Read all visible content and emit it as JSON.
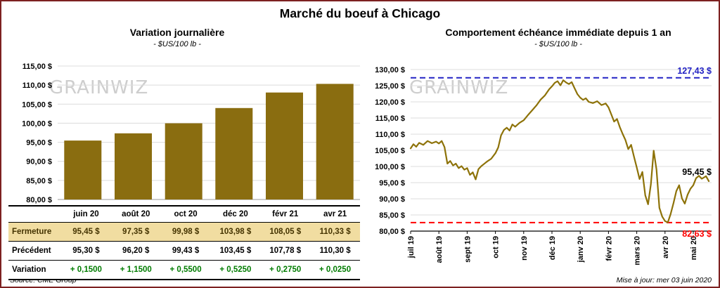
{
  "page": {
    "title": "Marché du boeuf à Chicago",
    "watermark": "GRAINWIZ",
    "source": "Source: CME Group",
    "updated": "Mise à jour: mer 03 juin 2020"
  },
  "table": {
    "columns": [
      "juin 20",
      "août 20",
      "oct 20",
      "déc 20",
      "févr 21",
      "avr 21"
    ],
    "rows": [
      {
        "label": "Fermeture",
        "style": "fermeture",
        "values": [
          "95,45 $",
          "97,35 $",
          "99,98 $",
          "103,98 $",
          "108,05 $",
          "110,33 $"
        ]
      },
      {
        "label": "Précédent",
        "style": "precedent",
        "values": [
          "95,30 $",
          "96,20 $",
          "99,43 $",
          "103,45 $",
          "107,78 $",
          "110,30 $"
        ]
      },
      {
        "label": "Variation",
        "style": "variation",
        "values": [
          "+ 0,1500",
          "+ 1,1500",
          "+ 0,5500",
          "+ 0,5250",
          "+ 0,2750",
          "+ 0,0250"
        ]
      }
    ]
  },
  "chart_data": [
    {
      "type": "bar",
      "title": "Variation journalière",
      "subtitle": "- $US/100 lb -",
      "categories": [
        "juin 20",
        "août 20",
        "oct 20",
        "déc 20",
        "févr 21",
        "avr 21"
      ],
      "values": [
        95.45,
        97.35,
        99.98,
        103.98,
        108.05,
        110.33
      ],
      "ylim": [
        80,
        115
      ],
      "ytick_step": 5,
      "ytick_labels": [
        "80,00 $",
        "85,00 $",
        "90,00 $",
        "95,00 $",
        "100,00 $",
        "105,00 $",
        "110,00 $",
        "115,00 $"
      ],
      "bar_color": "#8a6d10",
      "grid": true,
      "legend": "none"
    },
    {
      "type": "line",
      "title": "Comportement échéance immédiate depuis 1 an",
      "subtitle": "- $US/100 lb -",
      "x_tick_labels": [
        "juil 19",
        "août 19",
        "sept 19",
        "oct 19",
        "nov 19",
        "déc 19",
        "janv 20",
        "févr 20",
        "mars 20",
        "avr 20",
        "mai 20"
      ],
      "ylim": [
        80,
        130
      ],
      "ytick_step": 5,
      "ytick_labels": [
        "80,00 $",
        "85,00 $",
        "90,00 $",
        "95,00 $",
        "100,00 $",
        "105,00 $",
        "110,00 $",
        "115,00 $",
        "120,00 $",
        "125,00 $",
        "130,00 $"
      ],
      "line_color": "#8d7208",
      "grid": true,
      "high_line": {
        "value": 127.43,
        "label": "127,43 $",
        "color": "#2222c4"
      },
      "low_line": {
        "value": 82.63,
        "label": "82,63 $",
        "color": "#ff0000"
      },
      "last_point_label": {
        "value": 95.45,
        "label": "95,45 $",
        "color": "#000000"
      },
      "points": [
        [
          0.0,
          105.6
        ],
        [
          0.1,
          106.9
        ],
        [
          0.2,
          106.1
        ],
        [
          0.3,
          107.3
        ],
        [
          0.45,
          106.7
        ],
        [
          0.6,
          107.9
        ],
        [
          0.75,
          107.2
        ],
        [
          0.9,
          107.7
        ],
        [
          1.0,
          107.1
        ],
        [
          1.1,
          107.9
        ],
        [
          1.2,
          106.0
        ],
        [
          1.3,
          100.9
        ],
        [
          1.4,
          101.7
        ],
        [
          1.5,
          100.3
        ],
        [
          1.6,
          100.9
        ],
        [
          1.7,
          99.5
        ],
        [
          1.8,
          100.1
        ],
        [
          1.9,
          99.0
        ],
        [
          2.0,
          99.5
        ],
        [
          2.1,
          97.4
        ],
        [
          2.2,
          98.2
        ],
        [
          2.3,
          96.0
        ],
        [
          2.4,
          99.2
        ],
        [
          2.5,
          100.1
        ],
        [
          2.6,
          100.8
        ],
        [
          2.7,
          101.5
        ],
        [
          2.85,
          102.4
        ],
        [
          3.0,
          104.1
        ],
        [
          3.1,
          105.9
        ],
        [
          3.2,
          109.6
        ],
        [
          3.3,
          111.3
        ],
        [
          3.4,
          112.0
        ],
        [
          3.5,
          111.1
        ],
        [
          3.6,
          113.0
        ],
        [
          3.7,
          112.3
        ],
        [
          3.85,
          113.5
        ],
        [
          4.0,
          114.3
        ],
        [
          4.15,
          115.9
        ],
        [
          4.3,
          117.4
        ],
        [
          4.45,
          118.9
        ],
        [
          4.6,
          120.7
        ],
        [
          4.75,
          122.0
        ],
        [
          4.9,
          123.9
        ],
        [
          5.0,
          124.8
        ],
        [
          5.1,
          125.9
        ],
        [
          5.2,
          126.4
        ],
        [
          5.3,
          125.1
        ],
        [
          5.4,
          126.7
        ],
        [
          5.5,
          126.0
        ],
        [
          5.6,
          125.5
        ],
        [
          5.7,
          126.1
        ],
        [
          5.8,
          124.2
        ],
        [
          5.9,
          122.4
        ],
        [
          6.0,
          121.3
        ],
        [
          6.1,
          120.6
        ],
        [
          6.2,
          121.1
        ],
        [
          6.3,
          120.0
        ],
        [
          6.45,
          119.6
        ],
        [
          6.6,
          120.2
        ],
        [
          6.75,
          119.0
        ],
        [
          6.9,
          119.5
        ],
        [
          7.0,
          118.3
        ],
        [
          7.1,
          116.1
        ],
        [
          7.2,
          113.9
        ],
        [
          7.3,
          114.7
        ],
        [
          7.4,
          112.2
        ],
        [
          7.5,
          110.1
        ],
        [
          7.6,
          108.2
        ],
        [
          7.7,
          105.4
        ],
        [
          7.8,
          106.7
        ],
        [
          7.9,
          103.1
        ],
        [
          8.0,
          99.7
        ],
        [
          8.1,
          96.1
        ],
        [
          8.2,
          98.3
        ],
        [
          8.3,
          91.1
        ],
        [
          8.4,
          88.3
        ],
        [
          8.5,
          94.5
        ],
        [
          8.6,
          104.9
        ],
        [
          8.7,
          99.0
        ],
        [
          8.8,
          87.2
        ],
        [
          8.9,
          84.5
        ],
        [
          9.0,
          83.1
        ],
        [
          9.1,
          82.7
        ],
        [
          9.2,
          85.3
        ],
        [
          9.3,
          88.7
        ],
        [
          9.4,
          92.4
        ],
        [
          9.5,
          94.2
        ],
        [
          9.6,
          90.1
        ],
        [
          9.7,
          88.5
        ],
        [
          9.8,
          91.3
        ],
        [
          9.9,
          93.1
        ],
        [
          10.0,
          94.2
        ],
        [
          10.1,
          96.4
        ],
        [
          10.2,
          97.1
        ],
        [
          10.3,
          96.2
        ],
        [
          10.45,
          97.0
        ],
        [
          10.55,
          95.45
        ]
      ]
    }
  ]
}
